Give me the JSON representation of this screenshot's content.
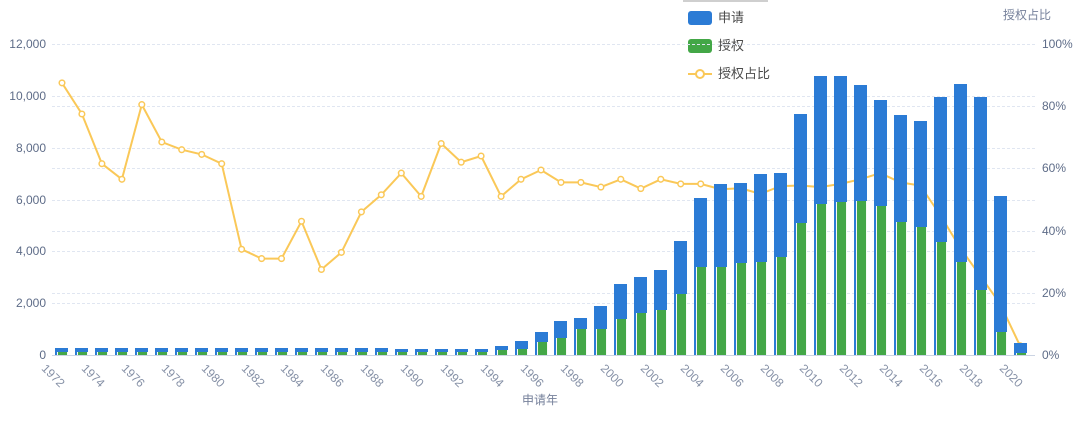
{
  "legend": {
    "items": [
      {
        "label": "申请",
        "type": "bar",
        "color": "#2b7bd5"
      },
      {
        "label": "授权",
        "type": "bar",
        "color": "#43a747"
      },
      {
        "label": "授权占比",
        "type": "line",
        "color": "#fac858"
      }
    ]
  },
  "axes": {
    "y_left": {
      "tick_labels": [
        "0",
        "2,000",
        "4,000",
        "6,000",
        "8,000",
        "10,000",
        "12,000"
      ],
      "tick_values": [
        0,
        2000,
        4000,
        6000,
        8000,
        10000,
        12000
      ],
      "min": 0,
      "max": 12000
    },
    "y_right": {
      "title": "授权占比",
      "tick_labels": [
        "0%",
        "20%",
        "40%",
        "60%",
        "80%",
        "100%"
      ],
      "tick_values": [
        0,
        20,
        40,
        60,
        80,
        100
      ],
      "min": 0,
      "max": 100
    },
    "x": {
      "title": "申请年",
      "tick_labels": [
        "1972",
        "1974",
        "1976",
        "1978",
        "1980",
        "1982",
        "1984",
        "1986",
        "1988",
        "1990",
        "1992",
        "1994",
        "1996",
        "1998",
        "2000",
        "2002",
        "2004",
        "2006",
        "2008",
        "2010",
        "2012",
        "2014",
        "2016",
        "2018",
        "2020"
      ]
    }
  },
  "colors": {
    "application_bar": "#2b7bd5",
    "grant_bar": "#43a747",
    "ratio_line": "#fac858",
    "marker_fill": "#ffffff",
    "grid": "#e0e6f1",
    "axis_baseline": "#ccd4e3",
    "y_tick_text": "#5e6c88",
    "x_tick_text": "#8590a6",
    "axis_title_text": "#76819b",
    "legend_text": "#4b4b4b",
    "background": "#ffffff"
  },
  "chart_data": {
    "type": "combo",
    "subtypes": [
      "bar",
      "bar",
      "line"
    ],
    "categories": [
      1972,
      1973,
      1974,
      1975,
      1976,
      1977,
      1978,
      1979,
      1980,
      1981,
      1982,
      1983,
      1984,
      1985,
      1986,
      1987,
      1988,
      1989,
      1990,
      1991,
      1992,
      1993,
      1994,
      1995,
      1996,
      1997,
      1998,
      1999,
      2000,
      2001,
      2002,
      2003,
      2004,
      2005,
      2006,
      2007,
      2008,
      2009,
      2010,
      2011,
      2012,
      2013,
      2014,
      2015,
      2016,
      2017,
      2018,
      2019,
      2020
    ],
    "series": [
      {
        "name": "申请",
        "type": "bar",
        "axis": "left",
        "color": "#2b7bd5",
        "values": [
          260,
          260,
          260,
          260,
          260,
          260,
          260,
          260,
          260,
          260,
          260,
          260,
          260,
          260,
          260,
          260,
          260,
          230,
          230,
          235,
          235,
          245,
          350,
          555,
          900,
          1310,
          1420,
          1890,
          2730,
          3020,
          3280,
          4410,
          6050,
          6600,
          6650,
          6970,
          7040,
          9300,
          10780,
          10780,
          10420,
          9840,
          9260,
          9040,
          9950,
          10460,
          9950,
          6150,
          450
        ]
      },
      {
        "name": "授权",
        "type": "bar",
        "axis": "left",
        "color": "#43a747",
        "values": [
          130,
          130,
          130,
          130,
          130,
          130,
          130,
          130,
          130,
          130,
          130,
          130,
          130,
          130,
          130,
          130,
          130,
          110,
          110,
          115,
          115,
          120,
          190,
          230,
          510,
          670,
          990,
          1000,
          1380,
          1630,
          1740,
          2350,
          3400,
          3400,
          3550,
          3600,
          3790,
          5090,
          5830,
          5920,
          5950,
          5760,
          5120,
          4950,
          4370,
          3580,
          2510,
          900,
          70
        ]
      },
      {
        "name": "授权占比",
        "type": "line",
        "axis": "right",
        "color": "#fac858",
        "values": [
          87.5,
          77.5,
          61.5,
          56.5,
          80.5,
          68.5,
          66,
          64.5,
          61.5,
          34,
          31,
          31,
          43,
          27.5,
          33,
          46,
          51.5,
          58.5,
          51,
          68,
          62,
          64,
          51,
          56.5,
          59.5,
          55.5,
          55.5,
          54,
          56.5,
          53.5,
          56.5,
          55,
          55,
          53.3,
          53.6,
          51.8,
          54.3,
          54.5,
          54,
          55,
          56.5,
          58.5,
          55.5,
          54.5,
          45,
          34.5,
          25.5,
          16.5,
          3
        ]
      }
    ],
    "title": "",
    "xlabel": "申请年",
    "ylabel_left": "",
    "ylabel_right": "授权占比",
    "ylim_left": [
      0,
      12000
    ],
    "ylim_right": [
      0,
      100
    ],
    "grid": "dashed horizontal gridlines for both left (2000 steps) and right (20% steps) axes",
    "legend_position": "top-center, vertical stack"
  }
}
